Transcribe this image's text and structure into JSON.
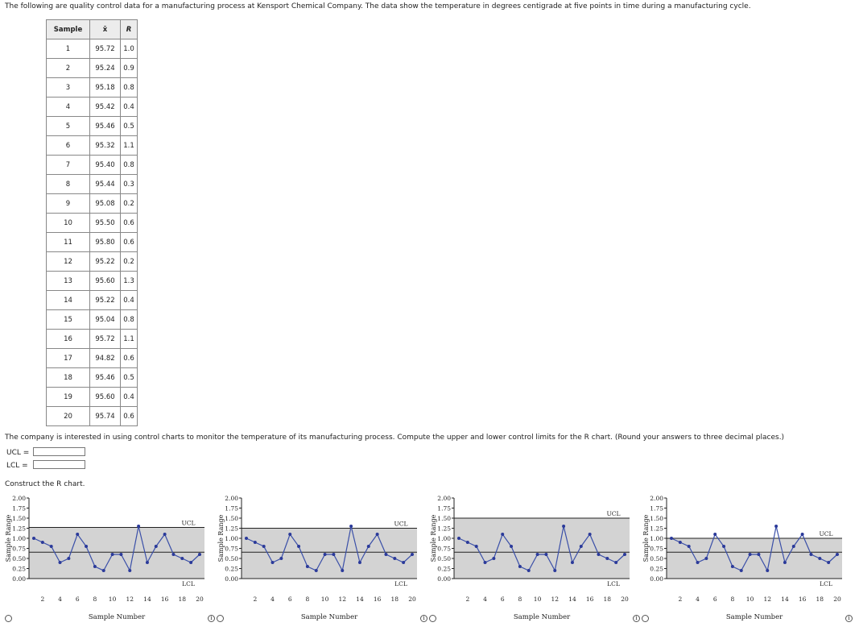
{
  "intro_text": "The following are quality control data for a manufacturing process at Kensport Chemical Company. The data show the temperature in degrees centigrade at five points in time during a manufacturing cycle.",
  "table": {
    "headers": [
      "Sample",
      "x̄",
      "R"
    ],
    "rows": [
      [
        "1",
        "95.72",
        "1.0"
      ],
      [
        "2",
        "95.24",
        "0.9"
      ],
      [
        "3",
        "95.18",
        "0.8"
      ],
      [
        "4",
        "95.42",
        "0.4"
      ],
      [
        "5",
        "95.46",
        "0.5"
      ],
      [
        "6",
        "95.32",
        "1.1"
      ],
      [
        "7",
        "95.40",
        "0.8"
      ],
      [
        "8",
        "95.44",
        "0.3"
      ],
      [
        "9",
        "95.08",
        "0.2"
      ],
      [
        "10",
        "95.50",
        "0.6"
      ],
      [
        "11",
        "95.80",
        "0.6"
      ],
      [
        "12",
        "95.22",
        "0.2"
      ],
      [
        "13",
        "95.60",
        "1.3"
      ],
      [
        "14",
        "95.22",
        "0.4"
      ],
      [
        "15",
        "95.04",
        "0.8"
      ],
      [
        "16",
        "95.72",
        "1.1"
      ],
      [
        "17",
        "94.82",
        "0.6"
      ],
      [
        "18",
        "95.46",
        "0.5"
      ],
      [
        "19",
        "95.60",
        "0.4"
      ],
      [
        "20",
        "95.74",
        "0.6"
      ]
    ]
  },
  "question_text": "The company is interested in using control charts to monitor the temperature of its manufacturing process. Compute the upper and lower control limits for the R chart. (Round your answers to three decimal places.)",
  "ucl_label": "UCL =",
  "lcl_label": "LCL =",
  "ucl_value": "",
  "lcl_value": "",
  "construct_text": "Construct the R chart.",
  "chart_data": [
    {
      "type": "line",
      "ylabel": "Sample Range",
      "xlabel": "Sample Number",
      "ylim": [
        0,
        2
      ],
      "yticks": [
        "0.00",
        "0.25",
        "0.50",
        "0.75",
        "1.00",
        "1.25",
        "1.50",
        "1.75",
        "2.00"
      ],
      "xticks": [
        "2",
        "4",
        "6",
        "8",
        "10",
        "12",
        "14",
        "16",
        "18",
        "20"
      ],
      "x": [
        1,
        2,
        3,
        4,
        5,
        6,
        7,
        8,
        9,
        10,
        11,
        12,
        13,
        14,
        15,
        16,
        17,
        18,
        19,
        20
      ],
      "values": [
        1.0,
        0.9,
        0.8,
        0.4,
        0.5,
        1.1,
        0.8,
        0.3,
        0.2,
        0.6,
        0.6,
        0.2,
        1.3,
        0.4,
        0.8,
        1.1,
        0.6,
        0.5,
        0.4,
        0.6
      ],
      "ucl": 1.27,
      "center": 0.655,
      "lcl": 0.0,
      "ucl_label": "UCL",
      "lcl_label": "LCL"
    },
    {
      "type": "line",
      "ylabel": "Sample Range",
      "xlabel": "Sample Number",
      "ylim": [
        0,
        2
      ],
      "yticks": [
        "0.00",
        "0.25",
        "0.50",
        "0.75",
        "1.00",
        "1.25",
        "1.50",
        "1.75",
        "2.00"
      ],
      "xticks": [
        "2",
        "4",
        "6",
        "8",
        "10",
        "12",
        "14",
        "16",
        "18",
        "20"
      ],
      "x": [
        1,
        2,
        3,
        4,
        5,
        6,
        7,
        8,
        9,
        10,
        11,
        12,
        13,
        14,
        15,
        16,
        17,
        18,
        19,
        20
      ],
      "values": [
        1.0,
        0.9,
        0.8,
        0.4,
        0.5,
        1.1,
        0.8,
        0.3,
        0.2,
        0.6,
        0.6,
        0.2,
        1.3,
        0.4,
        0.8,
        1.1,
        0.6,
        0.5,
        0.4,
        0.6
      ],
      "ucl": 1.25,
      "center": 0.655,
      "lcl": 0.0,
      "ucl_label": "UCL",
      "lcl_label": "LCL"
    },
    {
      "type": "line",
      "ylabel": "Sample Range",
      "xlabel": "Sample Number",
      "ylim": [
        0,
        2
      ],
      "yticks": [
        "0.00",
        "0.25",
        "0.50",
        "0.75",
        "1.00",
        "1.25",
        "1.50",
        "1.75",
        "2.00"
      ],
      "xticks": [
        "2",
        "4",
        "6",
        "8",
        "10",
        "12",
        "14",
        "16",
        "18",
        "20"
      ],
      "x": [
        1,
        2,
        3,
        4,
        5,
        6,
        7,
        8,
        9,
        10,
        11,
        12,
        13,
        14,
        15,
        16,
        17,
        18,
        19,
        20
      ],
      "values": [
        1.0,
        0.9,
        0.8,
        0.4,
        0.5,
        1.1,
        0.8,
        0.3,
        0.2,
        0.6,
        0.6,
        0.2,
        1.3,
        0.4,
        0.8,
        1.1,
        0.6,
        0.5,
        0.4,
        0.6
      ],
      "ucl": 1.5,
      "center": 0.655,
      "lcl": 0.0,
      "ucl_label": "UCL",
      "lcl_label": "LCL"
    },
    {
      "type": "line",
      "ylabel": "Sample Range",
      "xlabel": "Sample Number",
      "ylim": [
        0,
        2
      ],
      "yticks": [
        "0.00",
        "0.25",
        "0.50",
        "0.75",
        "1.00",
        "1.25",
        "1.50",
        "1.75",
        "2.00"
      ],
      "xticks": [
        "2",
        "4",
        "6",
        "8",
        "10",
        "12",
        "14",
        "16",
        "18",
        "20"
      ],
      "x": [
        1,
        2,
        3,
        4,
        5,
        6,
        7,
        8,
        9,
        10,
        11,
        12,
        13,
        14,
        15,
        16,
        17,
        18,
        19,
        20
      ],
      "values": [
        1.0,
        0.9,
        0.8,
        0.4,
        0.5,
        1.1,
        0.8,
        0.3,
        0.2,
        0.6,
        0.6,
        0.2,
        1.3,
        0.4,
        0.8,
        1.1,
        0.6,
        0.5,
        0.4,
        0.6
      ],
      "ucl": 1.0,
      "center": 0.655,
      "lcl": 0.0,
      "ucl_label": "UCL",
      "lcl_label": "LCL"
    }
  ],
  "colors": {
    "band": "#d3d3d3",
    "line": "#3a4fa8",
    "marker": "#2b3a9a",
    "limit": "#222222"
  }
}
